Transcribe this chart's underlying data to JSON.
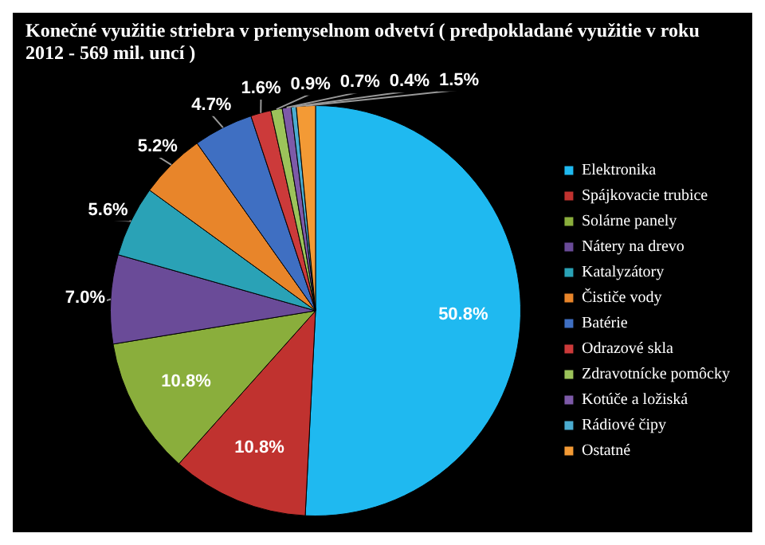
{
  "chart_data": {
    "type": "pie",
    "title": "Konečné využitie striebra v priemyselnom odvetví ( predpokladané využitie v roku 2012 - 569 mil. uncí )",
    "categories": [
      "Elektronika",
      "Spájkovacie trubice",
      "Solárne panely",
      "Nátery na drevo",
      "Katalyzátory",
      "Čističe vody",
      "Batérie",
      "Odrazové skla",
      "Zdravotnícke pomôcky",
      "Kotúče a ložiská",
      "Rádiové čipy",
      "Ostatné"
    ],
    "values": [
      50.8,
      10.8,
      10.8,
      7.0,
      5.6,
      5.2,
      4.7,
      1.6,
      0.9,
      0.7,
      0.4,
      1.5
    ],
    "value_labels": [
      "50.8%",
      "10.8%",
      "10.8%",
      "7.0%",
      "5.6%",
      "5.2%",
      "4.7%",
      "1.6%",
      "0.9%",
      "0.7%",
      "0.4%",
      "1.5%"
    ],
    "colors": [
      "#1fb9f0",
      "#c0322f",
      "#8aae3c",
      "#6a4b98",
      "#2aa2b6",
      "#e8852a",
      "#3f6fc2",
      "#cc3a3a",
      "#9cc35a",
      "#7d5aa8",
      "#4bacd0",
      "#f39a35"
    ],
    "legend": "right"
  }
}
